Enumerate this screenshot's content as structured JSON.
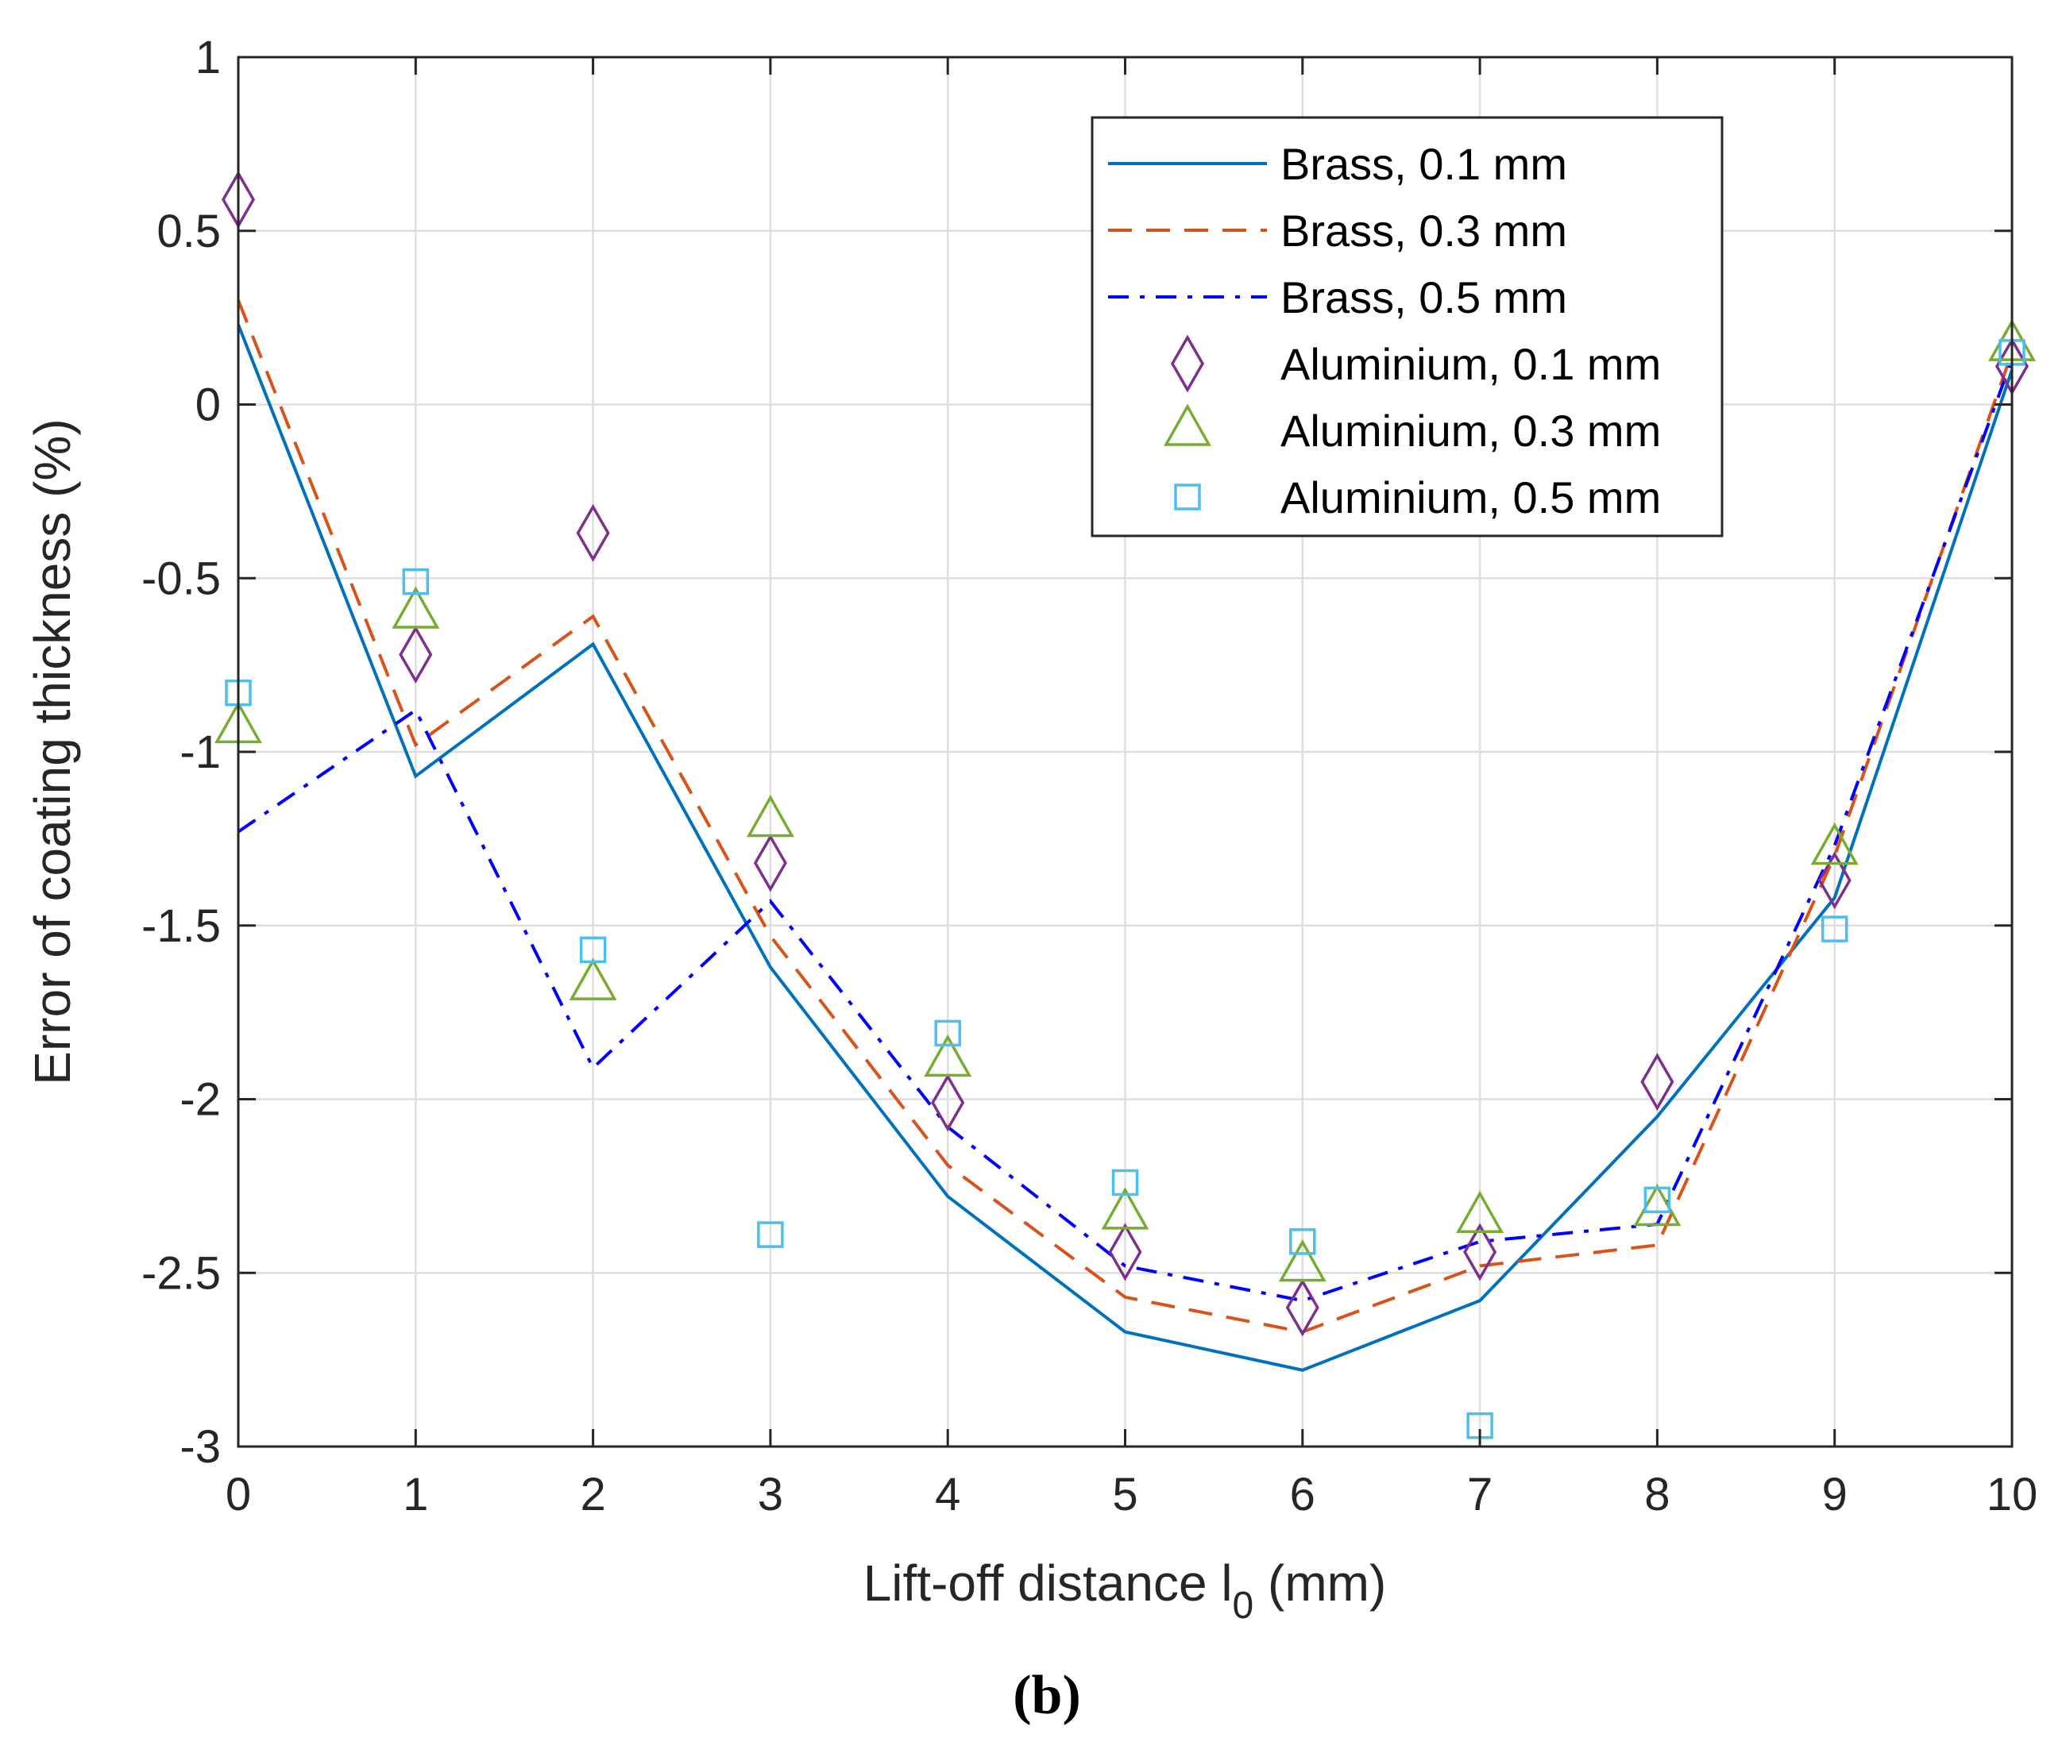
{
  "chart_data": {
    "type": "line",
    "xlabel": "Lift-off distance l",
    "xlabel_sub": "0",
    "xlabel_unit": " (mm)",
    "ylabel": "Error of coating thickness (%)",
    "caption": "(b)",
    "xlim": [
      0,
      10
    ],
    "ylim": [
      -3,
      1
    ],
    "grid": true,
    "legend_position": "top-right",
    "x_ticks": [
      {
        "v": 0,
        "label": "0"
      },
      {
        "v": 1,
        "label": "1"
      },
      {
        "v": 2,
        "label": "2"
      },
      {
        "v": 3,
        "label": "3"
      },
      {
        "v": 4,
        "label": "4"
      },
      {
        "v": 5,
        "label": "5"
      },
      {
        "v": 6,
        "label": "6"
      },
      {
        "v": 7,
        "label": "7"
      },
      {
        "v": 8,
        "label": "8"
      },
      {
        "v": 9,
        "label": "9"
      },
      {
        "v": 10,
        "label": "10"
      }
    ],
    "y_ticks": [
      {
        "v": 1,
        "label": "1"
      },
      {
        "v": 0.5,
        "label": "0.5"
      },
      {
        "v": 0,
        "label": "0"
      },
      {
        "v": -0.5,
        "label": "-0.5"
      },
      {
        "v": -1,
        "label": "-1"
      },
      {
        "v": -1.5,
        "label": "-1.5"
      },
      {
        "v": -2,
        "label": "-2"
      },
      {
        "v": -2.5,
        "label": "-2.5"
      },
      {
        "v": -3,
        "label": "-3"
      }
    ],
    "x": [
      0,
      1,
      2,
      3,
      4,
      5,
      6,
      7,
      8,
      9,
      10
    ],
    "series": [
      {
        "name": "Brass, 0.1 mm",
        "kind": "line",
        "style": "solid",
        "color": "#0072BD",
        "values": [
          0.23,
          -1.07,
          -0.69,
          -1.62,
          -2.28,
          -2.67,
          -2.78,
          -2.58,
          -2.05,
          -1.42,
          0.1
        ]
      },
      {
        "name": "Brass, 0.3 mm",
        "kind": "line",
        "style": "dashed",
        "color": "#D95319",
        "values": [
          0.3,
          -0.98,
          -0.61,
          -1.53,
          -2.19,
          -2.57,
          -2.67,
          -2.48,
          -2.42,
          -1.3,
          0.15
        ]
      },
      {
        "name": "Brass, 0.5 mm",
        "kind": "line",
        "style": "dashdot",
        "color": "#0000FF",
        "values": [
          -1.23,
          -0.88,
          -1.91,
          -1.43,
          -2.08,
          -2.48,
          -2.58,
          -2.41,
          -2.36,
          -1.27,
          0.13
        ]
      },
      {
        "name": "Aluminium, 0.1 mm",
        "kind": "marker",
        "marker": "diamond",
        "color": "#7E2F8E",
        "values": [
          0.59,
          -0.72,
          -0.37,
          -1.32,
          -2.01,
          -2.44,
          -2.6,
          -2.44,
          -1.95,
          -1.37,
          0.11
        ]
      },
      {
        "name": "Aluminium, 0.3 mm",
        "kind": "marker",
        "marker": "triangle",
        "color": "#77AC30",
        "values": [
          -0.93,
          -0.6,
          -1.67,
          -1.2,
          -1.89,
          -2.33,
          -2.48,
          -2.34,
          -2.32,
          -1.28,
          0.17
        ]
      },
      {
        "name": "Aluminium, 0.5 mm",
        "kind": "marker",
        "marker": "square",
        "color": "#4DBEEE",
        "values": [
          -0.83,
          -0.51,
          -1.57,
          -2.39,
          -1.81,
          -2.24,
          -2.41,
          -2.94,
          -2.29,
          -1.51,
          0.15
        ]
      }
    ]
  }
}
